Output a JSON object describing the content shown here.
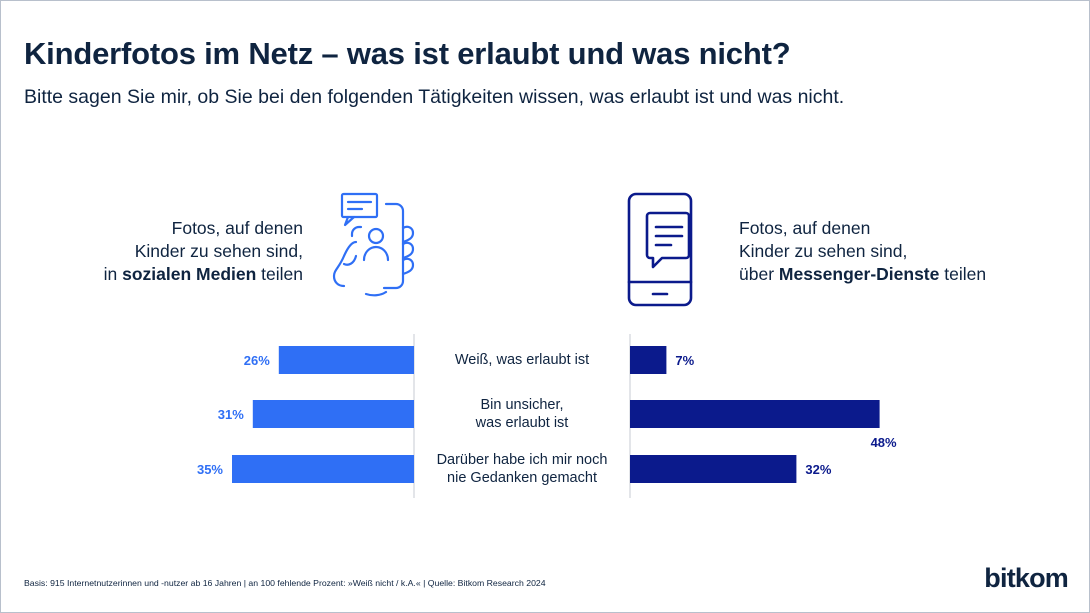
{
  "header": {
    "title": "Kinderfotos im Netz – was ist erlaubt und was nicht?",
    "subtitle": "Bitte sagen Sie mir, ob Sie bei den folgenden Tätigkeiten wissen, was erlaubt ist und was nicht."
  },
  "left_panel": {
    "line1": "Fotos, auf denen",
    "line2": "Kinder zu sehen sind,",
    "line3_pre": "in ",
    "line3_bold": "sozialen Medien",
    "line3_post": " teilen",
    "icon": "smartphone-hand-icon",
    "color": "#2f6ff5"
  },
  "right_panel": {
    "line1": "Fotos, auf denen",
    "line2": "Kinder zu sehen sind,",
    "line3_pre": "über ",
    "line3_bold": "Messenger-Dienste",
    "line3_post": " teilen",
    "icon": "messenger-phone-icon",
    "color": "#0b1a8c"
  },
  "chart_data": {
    "type": "bar",
    "orientation": "horizontal-butterfly",
    "categories": [
      [
        "Weiß, was erlaubt ist"
      ],
      [
        "Bin unsicher,",
        "was erlaubt ist"
      ],
      [
        "Darüber habe ich mir noch",
        "nie Gedanken gemacht"
      ]
    ],
    "series": [
      {
        "name": "sozialen Medien",
        "side": "left",
        "color": "#2f6ff5",
        "values": [
          26,
          31,
          35
        ],
        "labels": [
          "26%",
          "31%",
          "35%"
        ]
      },
      {
        "name": "Messenger-Dienste",
        "side": "right",
        "color": "#0b1a8c",
        "values": [
          7,
          48,
          32
        ],
        "labels": [
          "7%",
          "48%",
          "32%"
        ]
      }
    ],
    "unit": "%"
  },
  "footer": {
    "source": "Basis: 915 Internetnutzerinnen und -nutzer ab 16 Jahren | an 100 fehlende Prozent: »Weiß nicht / k.A.« | Quelle: Bitkom Research 2024"
  },
  "brand": {
    "logo": "bitkom"
  }
}
